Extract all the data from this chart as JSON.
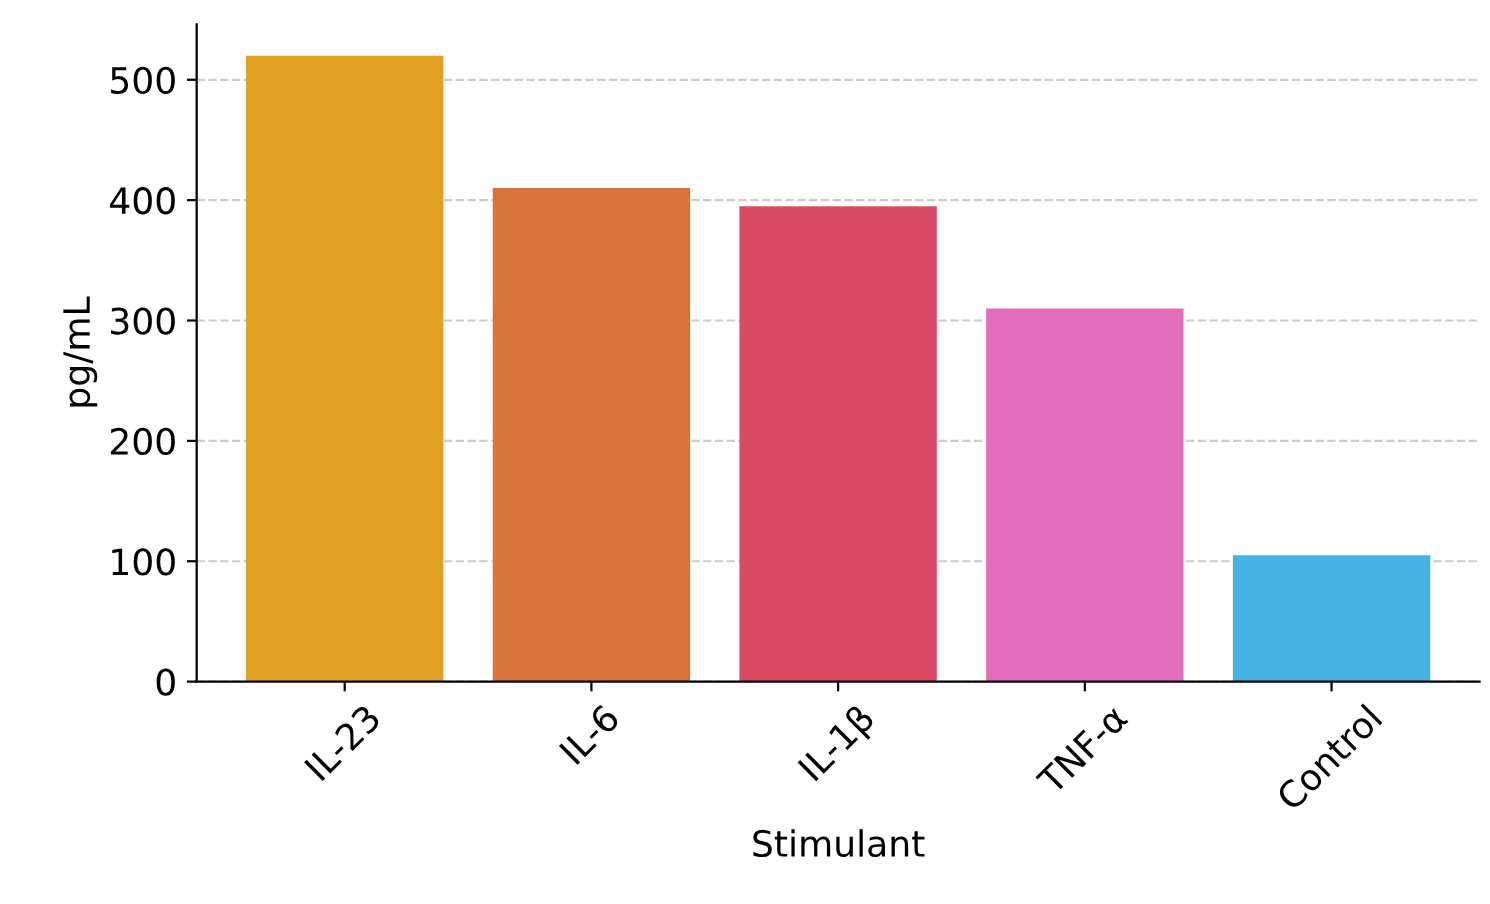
{
  "chart_data": {
    "type": "bar",
    "xlabel": "Stimulant",
    "ylabel": "pg/mL",
    "categories": [
      "IL-23",
      "IL-6",
      "IL-1β",
      "TNF-α",
      "Control"
    ],
    "values": [
      520,
      410,
      395,
      310,
      105
    ],
    "colors": [
      "#e0a021",
      "#d9723b",
      "#dc4a64",
      "#e36cbc",
      "#44b4e3"
    ],
    "ylim": [
      0,
      546
    ],
    "yticks": [
      0,
      100,
      200,
      300,
      400,
      500
    ],
    "grid": "y"
  }
}
